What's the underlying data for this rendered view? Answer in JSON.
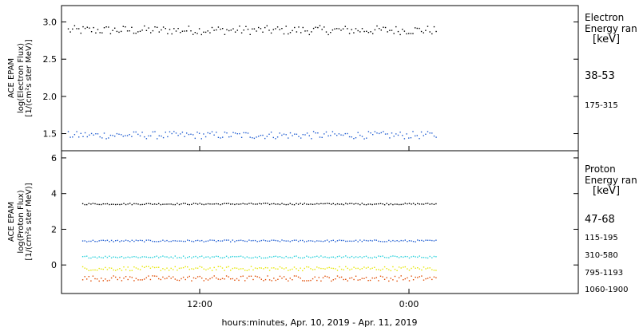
{
  "chart_data": [
    {
      "type": "scatter",
      "panel": "electron",
      "ylabel_lines": [
        "ACE EPAM",
        "log(Electron Flux)",
        "[1/(cm²s ster MeV)]"
      ],
      "yticks": [
        "3.0",
        "2.5",
        "2.0",
        "1.5"
      ],
      "ylim": [
        1.27,
        3.22
      ],
      "legend_title_lines": [
        "Electron",
        "Energy ran",
        "[keV]"
      ],
      "legend_placement": "right",
      "gaps": [
        [
          0.725,
          0.915
        ]
      ],
      "series": [
        {
          "name": "38-53",
          "color": "#000000",
          "level": 2.89,
          "spread": 0.06,
          "start": 0.012
        },
        {
          "name": "175-315",
          "color": "#1f5cd1",
          "level": 1.48,
          "spread": 0.05,
          "start": 0.012
        }
      ]
    },
    {
      "type": "scatter",
      "panel": "proton",
      "ylabel_lines": [
        "ACE EPAM",
        "log(Proton Flux)",
        "[1/(cm²s ster MeV)]"
      ],
      "yticks": [
        "6",
        "4",
        "2",
        "0"
      ],
      "ylim": [
        -1.6,
        6.4
      ],
      "legend_title_lines": [
        "Proton",
        "Energy ran",
        "[keV]"
      ],
      "legend_placement": "right",
      "gaps": [
        [
          0.725,
          0.915
        ]
      ],
      "series": [
        {
          "name": "47-68",
          "color": "#000000",
          "level": 3.42,
          "spread": 0.04,
          "start": 0.04
        },
        {
          "name": "115-195",
          "color": "#1f5cd1",
          "level": 1.35,
          "spread": 0.05,
          "start": 0.04
        },
        {
          "name": "310-580",
          "color": "#22cfd9",
          "level": 0.45,
          "spread": 0.06,
          "start": 0.04
        },
        {
          "name": "795-1193",
          "color": "#e6e600",
          "level": -0.2,
          "spread": 0.12,
          "start": 0.04
        },
        {
          "name": "1060-1900",
          "color": "#e04a00",
          "level": -0.75,
          "spread": 0.15,
          "start": 0.04
        }
      ]
    }
  ],
  "x_axis": {
    "ticks": [
      "12:00",
      "0:00"
    ],
    "xlabel": "hours:minutes, Apr. 10, 2019 - Apr. 11, 2019"
  }
}
